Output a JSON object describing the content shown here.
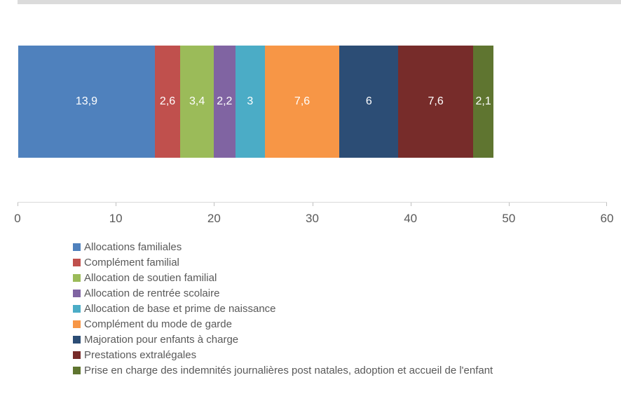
{
  "window": {
    "top_strip_color": "#dbdbdb"
  },
  "chart_data": {
    "type": "bar",
    "subtype": "stacked-horizontal",
    "title": "",
    "xlabel": "",
    "ylabel": "",
    "categories": [
      ""
    ],
    "series": [
      {
        "name": "Allocations familiales",
        "value": 13.9,
        "label": "13,9",
        "color": "#4f81bd"
      },
      {
        "name": "Complément familial",
        "value": 2.6,
        "label": "2,6",
        "color": "#c0504d"
      },
      {
        "name": "Allocation de soutien familial",
        "value": 3.4,
        "label": "3,4",
        "color": "#9bbb59"
      },
      {
        "name": "Allocation de rentrée scolaire",
        "value": 2.2,
        "label": "2,2",
        "color": "#8064a2"
      },
      {
        "name": "Allocation de base et prime de naissance",
        "value": 3,
        "label": "3",
        "color": "#4bacc6"
      },
      {
        "name": "Complément du mode de garde",
        "value": 7.6,
        "label": "7,6",
        "color": "#f79646"
      },
      {
        "name": "Majoration pour enfants à charge",
        "value": 6,
        "label": "6",
        "color": "#2c4d75"
      },
      {
        "name": "Prestations extralégales",
        "value": 7.6,
        "label": "7,6",
        "color": "#772c2a"
      },
      {
        "name": "Prise en charge des indemnités journalières post natales, adoption et accueil de l'enfant",
        "value": 2.1,
        "label": "2,1",
        "color": "#5f7530"
      }
    ],
    "xlim": [
      0,
      60
    ],
    "xticks": [
      "0",
      "10",
      "20",
      "30",
      "40",
      "50",
      "60"
    ],
    "xtick_values": [
      0,
      10,
      20,
      30,
      40,
      50,
      60
    ],
    "grid": false,
    "legend_position": "bottom-left",
    "style": {
      "axis_line_color": "#d9d9d9",
      "tick_color": "#bfbfbf",
      "axis_label_color": "#595959",
      "legend_label_color": "#595959",
      "value_label_color": "#ffffff"
    }
  }
}
